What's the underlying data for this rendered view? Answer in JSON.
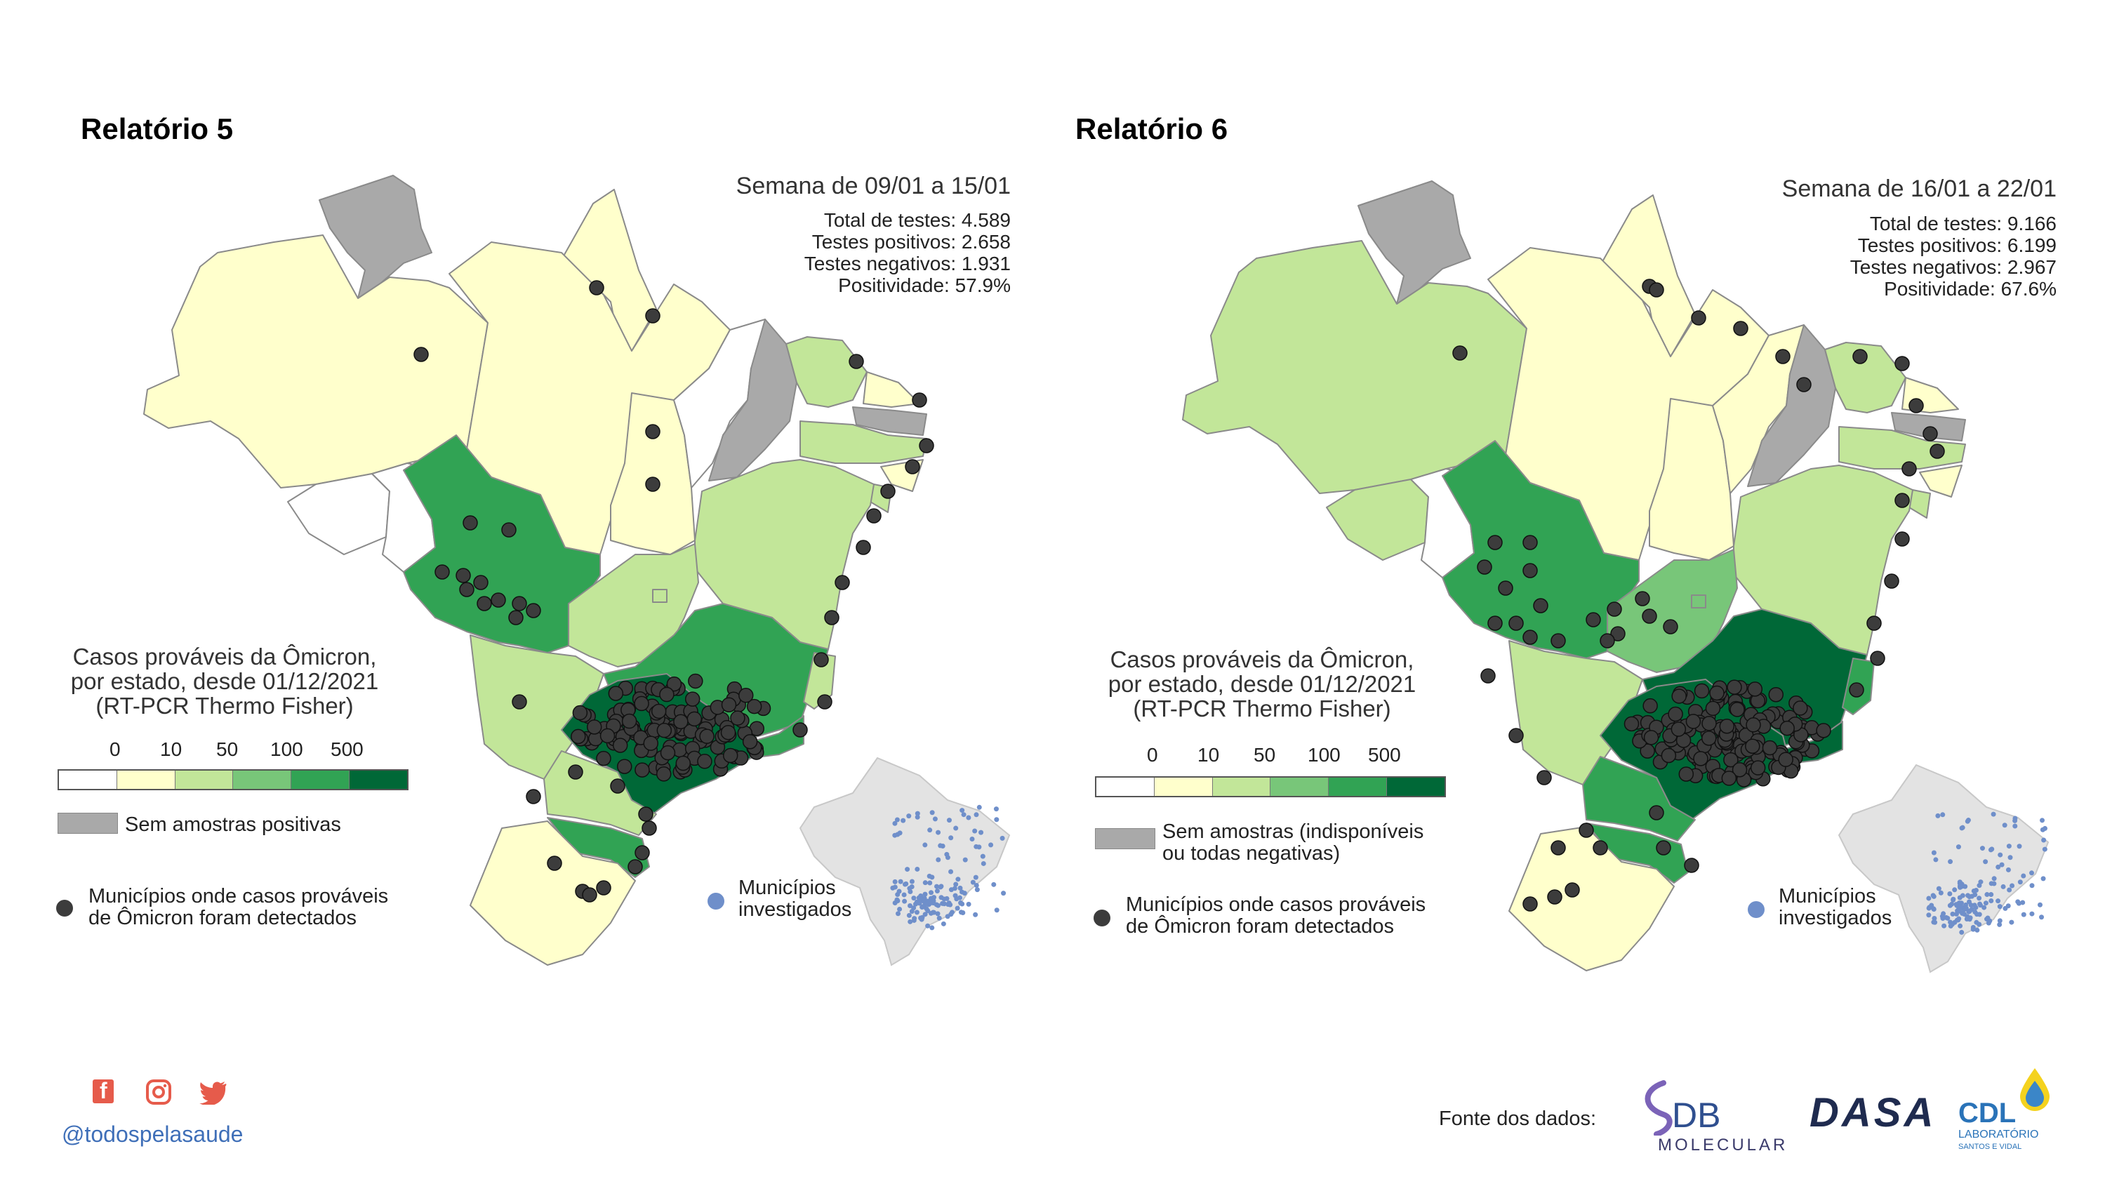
{
  "colors": {
    "cat_0": "#ffffff",
    "cat_1": "#ffffcc",
    "cat_2": "#c2e699",
    "cat_3": "#78c679",
    "cat_4": "#31a354",
    "cat_5": "#006837",
    "no_samples": "#a9a9a9",
    "detected_dot": "#3c3c3c",
    "investigated_dot": "#6f8fca",
    "social": "#e65b4b",
    "handle": "#3f6fb8"
  },
  "scale_ticks": [
    "0",
    "10",
    "50",
    "100",
    "500"
  ],
  "reports": [
    {
      "title": "Relatório 5",
      "week": "Semana de 09/01 a 15/01",
      "stats": [
        "Total de testes: 4.589",
        "Testes positivos: 2.658",
        "Testes negativos: 1.931",
        "Positividade: 57.9%"
      ],
      "legend_title": [
        "Casos prováveis da Ômicron,",
        "por estado, desde 01/12/2021",
        "(RT-PCR Thermo Fisher)"
      ],
      "no_samples_label": [
        "Sem amostras positivas"
      ],
      "detected_label": [
        "Municípios onde casos prováveis",
        "de Ômicron foram detectados"
      ],
      "investigated_label": [
        "Municípios",
        "investigados"
      ],
      "state_categories": {
        "RR": "none",
        "AP": "cat_1",
        "AM": "cat_1",
        "PA": "cat_1",
        "AC": "cat_0",
        "RO": "cat_0",
        "MT": "cat_4",
        "TO": "cat_1",
        "MA": "cat_0",
        "PI": "none",
        "CE": "cat_2",
        "RN": "cat_1",
        "PB": "none",
        "PE": "cat_2",
        "AL": "cat_1",
        "SE": "cat_2",
        "BA": "cat_2",
        "GO": "cat_2",
        "DF": "cat_2",
        "MS": "cat_2",
        "MG": "cat_4",
        "ES": "cat_2",
        "RJ": "cat_4",
        "SP": "cat_5",
        "PR": "cat_2",
        "SC": "cat_4",
        "RS": "cat_1"
      }
    },
    {
      "title": "Relatório 6",
      "week": "Semana de 16/01 a 22/01",
      "stats": [
        "Total de testes: 9.166",
        "Testes positivos: 6.199",
        "Testes negativos: 2.967",
        "Positividade: 67.6%"
      ],
      "legend_title": [
        "Casos prováveis da Ômicron,",
        "por estado, desde 01/12/2021",
        "(RT-PCR Thermo Fisher)"
      ],
      "no_samples_label": [
        "Sem amostras (indisponíveis",
        "ou todas negativas)"
      ],
      "detected_label": [
        "Municípios onde casos prováveis",
        "de Ômicron foram detectados"
      ],
      "investigated_label": [
        "Municípios",
        "investigados"
      ],
      "state_categories": {
        "RR": "none",
        "AP": "cat_1",
        "AM": "cat_2",
        "PA": "cat_1",
        "AC": "cat_2",
        "RO": "cat_0",
        "MT": "cat_4",
        "TO": "cat_1",
        "MA": "cat_1",
        "PI": "none",
        "CE": "cat_2",
        "RN": "cat_1",
        "PB": "none",
        "PE": "cat_2",
        "AL": "cat_1",
        "SE": "cat_2",
        "BA": "cat_2",
        "GO": "cat_3",
        "DF": "cat_3",
        "MS": "cat_2",
        "MG": "cat_5",
        "ES": "cat_4",
        "RJ": "cat_5",
        "SP": "cat_5",
        "PR": "cat_4",
        "SC": "cat_4",
        "RS": "cat_1"
      }
    }
  ],
  "footer": {
    "handle": "@todospelasaude",
    "social_icons": [
      "facebook-icon",
      "instagram-icon",
      "twitter-icon"
    ],
    "source_label": "Fonte dos dados:",
    "logos": [
      {
        "name": "db-molecular-logo",
        "text": "DB",
        "subtext": "MOLECULAR"
      },
      {
        "name": "dasa-logo",
        "text": "DASA"
      },
      {
        "name": "cdl-logo",
        "text": "CDL",
        "subtext": "LABORATÓRIO",
        "subtext2": "SANTOS E VIDAL"
      }
    ]
  }
}
